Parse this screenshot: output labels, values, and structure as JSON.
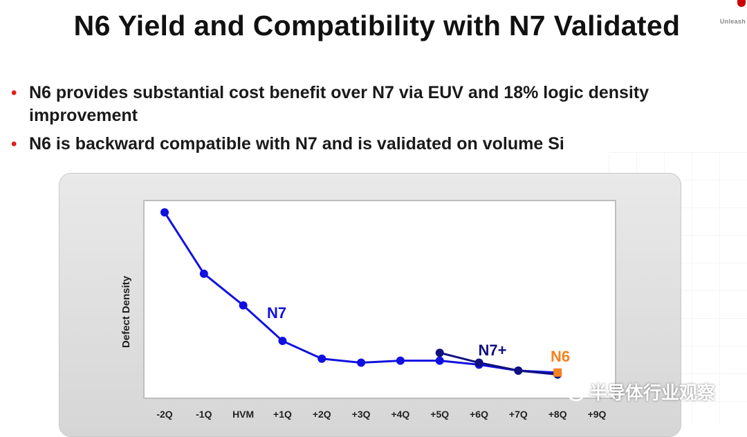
{
  "slide": {
    "title": "N6 Yield and Compatibility with N7 Validated",
    "corner_text": "Unleash"
  },
  "bullets": [
    "N6 provides substantial cost benefit over N7 via EUV and 18% logic density improvement",
    "N6 is backward compatible with N7 and is validated on volume Si"
  ],
  "watermark": {
    "text": "半导体行业观察",
    "icon": "wechat-icon"
  },
  "colors": {
    "n7": "#1010e0",
    "n7_plus": "#101080",
    "n6": "#f58220",
    "bullet": "#e0201b"
  },
  "chart_data": {
    "type": "line",
    "ylabel": "Defect Density",
    "xlabel": "",
    "categories": [
      "-2Q",
      "-1Q",
      "HVM",
      "+1Q",
      "+2Q",
      "+3Q",
      "+4Q",
      "+5Q",
      "+6Q",
      "+7Q",
      "+8Q",
      "+9Q"
    ],
    "ylim": [
      0,
      100
    ],
    "grid": false,
    "series": [
      {
        "name": "N7",
        "color": "#1010e0",
        "x": [
          "-2Q",
          "-1Q",
          "HVM",
          "+1Q",
          "+2Q",
          "+3Q",
          "+4Q",
          "+5Q",
          "+6Q",
          "+7Q",
          "+8Q"
        ],
        "values": [
          94,
          63,
          47,
          29,
          20,
          18,
          19,
          19,
          17,
          14,
          13
        ]
      },
      {
        "name": "N7+",
        "color": "#101080",
        "x": [
          "+5Q",
          "+6Q",
          "+7Q",
          "+8Q"
        ],
        "values": [
          23,
          18,
          14,
          12
        ]
      },
      {
        "name": "N6",
        "color": "#f58220",
        "x": [
          "+8Q"
        ],
        "values": [
          13
        ]
      }
    ],
    "annotations": [
      {
        "text": "N7",
        "series": "N7"
      },
      {
        "text": "N7+",
        "series": "N7+"
      },
      {
        "text": "N6",
        "series": "N6"
      }
    ]
  }
}
